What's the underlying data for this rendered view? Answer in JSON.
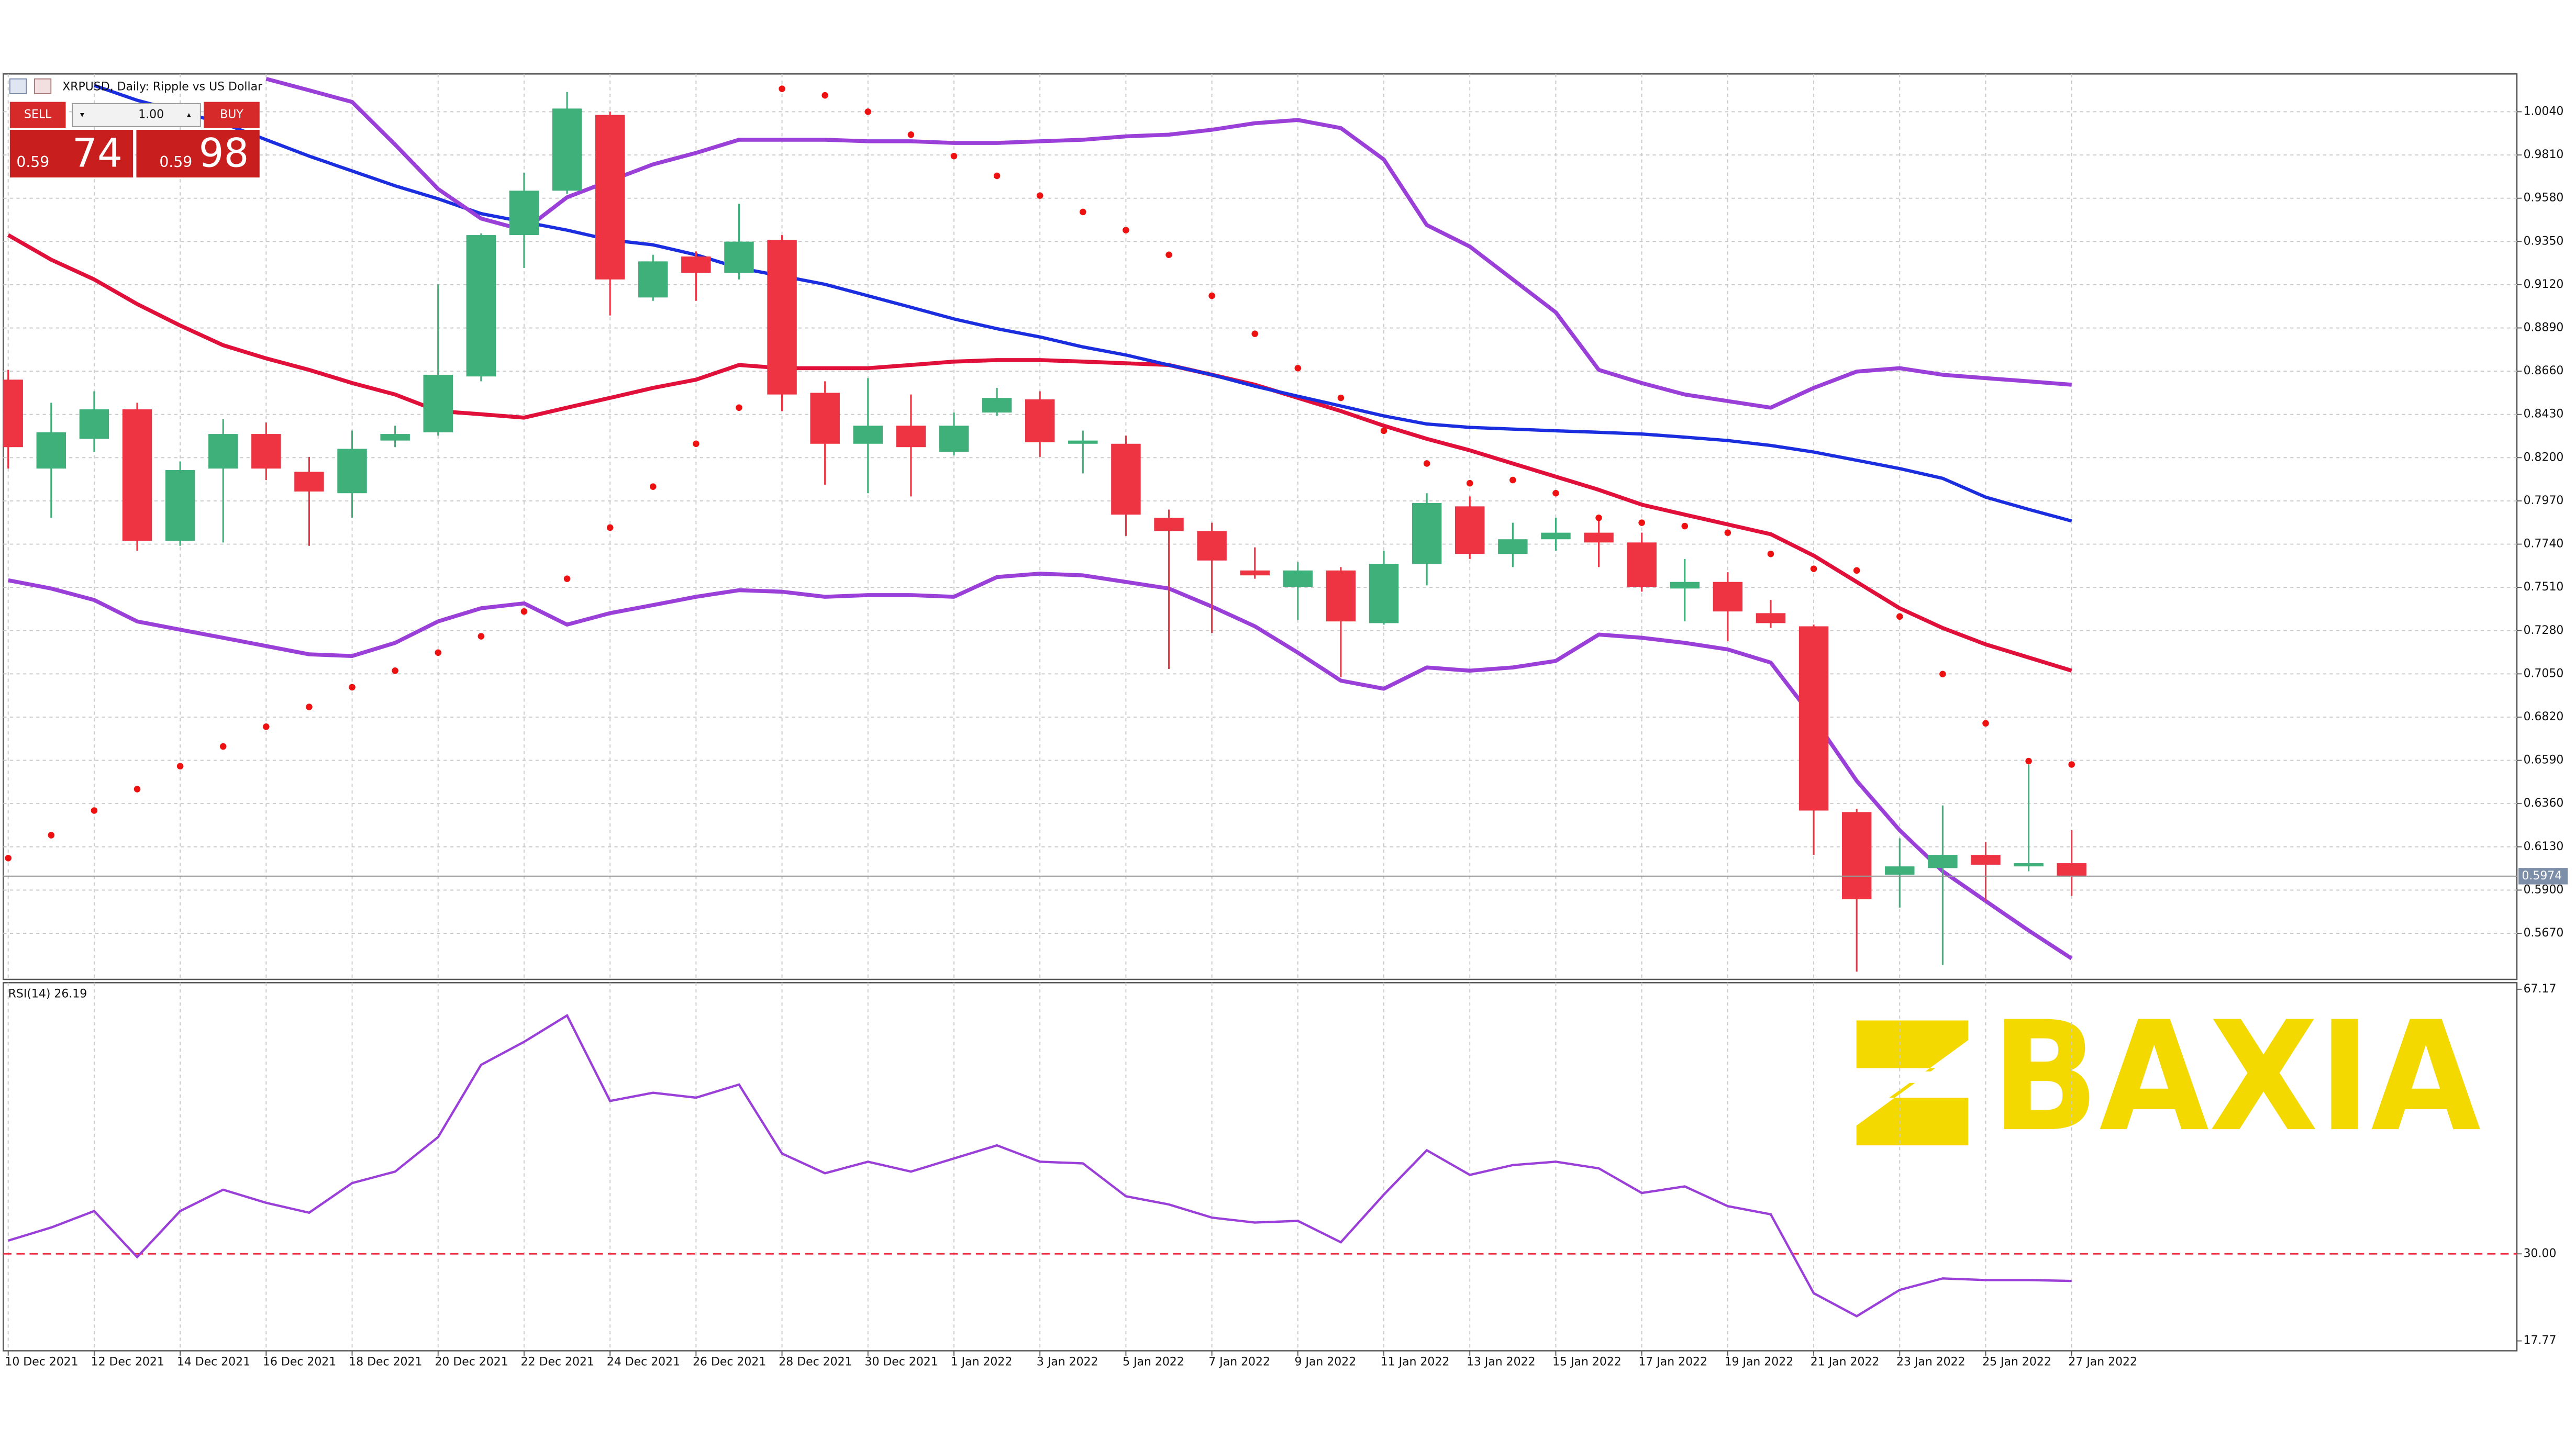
{
  "chart_data": [
    {
      "type": "candlestick",
      "title": "XRPUSD, Daily:  Ripple vs US Dollar",
      "categories": [
        "10 Dec 2021",
        null,
        "12 Dec 2021",
        null,
        "14 Dec 2021",
        null,
        "16 Dec 2021",
        null,
        "18 Dec 2021",
        null,
        "20 Dec 2021",
        null,
        "22 Dec 2021",
        null,
        "24 Dec 2021",
        null,
        "26 Dec 2021",
        null,
        "28 Dec 2021",
        null,
        "30 Dec 2021",
        null,
        "1 Jan 2022",
        null,
        "3 Jan 2022",
        null,
        "5 Jan 2022",
        null,
        "7 Jan 2022",
        null,
        "9 Jan 2022",
        null,
        "11 Jan 2022",
        null,
        "13 Jan 2022",
        null,
        "15 Jan 2022",
        null,
        "17 Jan 2022",
        null,
        "19 Jan 2022",
        null,
        "21 Jan 2022",
        null,
        "23 Jan 2022",
        null,
        "25 Jan 2022",
        null,
        "27 Jan 2022"
      ],
      "open": [
        0.8615,
        0.8142,
        0.83,
        0.8457,
        0.7758,
        0.8142,
        0.8326,
        0.8125,
        0.8011,
        0.8291,
        0.8335,
        0.8632,
        0.9384,
        0.962,
        1.0023,
        0.9052,
        0.927,
        0.9183,
        0.9358,
        0.8545,
        0.8274,
        0.837,
        0.823,
        0.844,
        0.851,
        0.8274,
        0.8274,
        0.788,
        0.781,
        0.76,
        0.7513,
        0.76,
        0.732,
        0.7635,
        0.7941,
        0.7688,
        0.7766,
        0.7801,
        0.7749,
        0.7504,
        0.7539,
        0.7373,
        0.7303,
        0.6315,
        0.5982,
        0.6017,
        0.6087,
        0.6026,
        0.6043
      ],
      "high": [
        0.8667,
        0.8492,
        0.8553,
        0.8492,
        0.818,
        0.8405,
        0.8387,
        0.8204,
        0.8344,
        0.837,
        0.9122,
        0.9393,
        0.9716,
        1.0145,
        1.004,
        0.9279,
        0.9297,
        0.955,
        0.9384,
        0.8606,
        0.8623,
        0.8536,
        0.844,
        0.8571,
        0.8553,
        0.8344,
        0.8317,
        0.7924,
        0.7854,
        0.7723,
        0.7644,
        0.7618,
        0.7705,
        0.8011,
        0.7994,
        0.7854,
        0.788,
        0.788,
        0.7801,
        0.7661,
        0.7591,
        0.7443,
        0.7312,
        0.6332,
        0.6175,
        0.635,
        0.6157,
        0.6568,
        0.6219
      ],
      "low": [
        0.8142,
        0.788,
        0.823,
        0.7705,
        0.7731,
        0.7749,
        0.8081,
        0.7731,
        0.788,
        0.8256,
        0.8317,
        0.8606,
        0.9209,
        0.9603,
        0.8956,
        0.9034,
        0.9034,
        0.9148,
        0.8448,
        0.8055,
        0.8011,
        0.7994,
        0.8212,
        0.8422,
        0.8204,
        0.8116,
        0.7784,
        0.7076,
        0.7268,
        0.7556,
        0.7338,
        0.7032,
        0.7312,
        0.7521,
        0.7661,
        0.7618,
        0.7705,
        0.7618,
        0.7487,
        0.7329,
        0.7224,
        0.7294,
        0.6087,
        0.5466,
        0.5807,
        0.5501,
        0.5842,
        0.6,
        0.5869
      ],
      "close": [
        0.8256,
        0.8335,
        0.8457,
        0.7758,
        0.8134,
        0.8326,
        0.8142,
        0.802,
        0.8247,
        0.8326,
        0.8641,
        0.9384,
        0.962,
        1.0057,
        0.9148,
        0.9244,
        0.9183,
        0.9349,
        0.8536,
        0.8274,
        0.837,
        0.8256,
        0.837,
        0.8518,
        0.8282,
        0.8291,
        0.7897,
        0.781,
        0.7653,
        0.7574,
        0.76,
        0.7329,
        0.7635,
        0.7959,
        0.7688,
        0.7766,
        0.7801,
        0.7749,
        0.7513,
        0.7539,
        0.7382,
        0.732,
        0.6323,
        0.5851,
        0.6026,
        0.6087,
        0.6035,
        0.6043,
        0.5974
      ],
      "up_color": "#3fb07a",
      "down_color": "#ee3443",
      "overlays": [
        {
          "style": "line",
          "color": "#e0103a",
          "width": 2.4,
          "values": [
            0.9384,
            0.9253,
            0.9148,
            0.9017,
            0.8903,
            0.8798,
            0.8728,
            0.8667,
            0.8597,
            0.8536,
            0.8448,
            0.8431,
            0.8413,
            0.8466,
            0.8518,
            0.8571,
            0.8615,
            0.8693,
            0.8676,
            0.8676,
            0.8676,
            0.8693,
            0.8711,
            0.8719,
            0.8719,
            0.8711,
            0.8702,
            0.8693,
            0.8641,
            0.8588,
            0.8518,
            0.8448,
            0.837,
            0.83,
            0.8239,
            0.8169,
            0.8099,
            0.8029,
            0.795,
            0.7897,
            0.7845,
            0.7793,
            0.7679,
            0.7539,
            0.7399,
            0.7294,
            0.7207,
            0.7137,
            0.7067
          ]
        },
        {
          "style": "line",
          "color": "#1a2ee0",
          "width": 2,
          "values": [
            null,
            null,
            1.018,
            1.0101,
            1.004,
            0.9979,
            0.9891,
            0.9804,
            0.9725,
            0.9646,
            0.9577,
            0.9498,
            0.9454,
            0.941,
            0.9358,
            0.9332,
            0.9279,
            0.9209,
            0.9166,
            0.9122,
            0.9061,
            0.9,
            0.8938,
            0.8886,
            0.8842,
            0.8789,
            0.8746,
            0.8693,
            0.8641,
            0.858,
            0.8527,
            0.8475,
            0.8422,
            0.8379,
            0.8361,
            0.8352,
            0.8343,
            0.8335,
            0.8326,
            0.8309,
            0.8291,
            0.8265,
            0.823,
            0.8186,
            0.8142,
            0.809,
            0.799,
            0.7925,
            0.7863
          ]
        },
        {
          "style": "line",
          "color": "#9a3fd8",
          "width": 2.4,
          "values": [
            null,
            null,
            null,
            null,
            null,
            null,
            1.0215,
            1.0154,
            1.0092,
            0.9865,
            0.9629,
            0.9472,
            0.941,
            0.9585,
            0.9673,
            0.976,
            0.9821,
            0.9891,
            0.9891,
            0.9891,
            0.9883,
            0.9883,
            0.9874,
            0.9874,
            0.9883,
            0.9891,
            0.9909,
            0.9918,
            0.9944,
            0.9979,
            0.9996,
            0.9953,
            0.9786,
            0.9437,
            0.9323,
            0.9148,
            0.8973,
            0.8667,
            0.8597,
            0.8536,
            0.8501,
            0.8466,
            0.8571,
            0.8658,
            0.8676,
            0.8641,
            0.8623,
            0.8606,
            0.8588
          ]
        },
        {
          "style": "line",
          "color": "#9a3fd8",
          "width": 2.4,
          "values": [
            0.7548,
            0.7504,
            0.7443,
            0.7329,
            0.7285,
            0.7242,
            0.7198,
            0.7154,
            0.7145,
            0.7215,
            0.7329,
            0.7399,
            0.7425,
            0.7312,
            0.7373,
            0.7416,
            0.746,
            0.7495,
            0.7487,
            0.746,
            0.7469,
            0.7469,
            0.746,
            0.7565,
            0.7583,
            0.7574,
            0.7539,
            0.7504,
            0.7408,
            0.7303,
            0.7163,
            0.7014,
            0.6971,
            0.7084,
            0.7067,
            0.7084,
            0.7119,
            0.7259,
            0.7242,
            0.7215,
            0.718,
            0.711,
            0.6813,
            0.6481,
            0.6218,
            0.6,
            0.5842,
            0.5685,
            0.5536
          ]
        },
        {
          "style": "dots",
          "color": "#ee1111",
          "width": 2,
          "values": [
            0.607,
            0.6192,
            0.6323,
            0.6437,
            0.6559,
            0.6664,
            0.6769,
            0.6874,
            0.6979,
            0.7067,
            0.7163,
            0.725,
            0.7382,
            0.7556,
            0.7828,
            0.8046,
            0.8274,
            0.8466,
            1.0162,
            1.0127,
            1.004,
            0.9918,
            0.9804,
            0.9699,
            0.9594,
            0.9507,
            0.941,
            0.9279,
            0.9061,
            0.8859,
            0.8676,
            0.8518,
            0.8343,
            0.8169,
            0.8064,
            0.8081,
            0.8011,
            0.788,
            0.7854,
            0.7836,
            0.7801,
            0.7688,
            0.7609,
            0.76,
            0.7355,
            0.7049,
            0.6787,
            0.6586,
            0.6568
          ]
        }
      ],
      "last_price": 0.5974,
      "ylim": [
        0.5425,
        1.0241
      ],
      "yticks": [
        {
          "value": 1.004,
          "label": "1.0040"
        },
        {
          "value": 0.981,
          "label": "0.9810"
        },
        {
          "value": 0.958,
          "label": "0.9580"
        },
        {
          "value": 0.935,
          "label": "0.9350"
        },
        {
          "value": 0.912,
          "label": "0.9120"
        },
        {
          "value": 0.889,
          "label": "0.8890"
        },
        {
          "value": 0.866,
          "label": "0.8660"
        },
        {
          "value": 0.843,
          "label": "0.8430"
        },
        {
          "value": 0.82,
          "label": "0.8200"
        },
        {
          "value": 0.797,
          "label": "0.7970"
        },
        {
          "value": 0.774,
          "label": "0.7740"
        },
        {
          "value": 0.751,
          "label": "0.7510"
        },
        {
          "value": 0.728,
          "label": "0.7280"
        },
        {
          "value": 0.705,
          "label": "0.7050"
        },
        {
          "value": 0.682,
          "label": "0.6820"
        },
        {
          "value": 0.659,
          "label": "0.6590"
        },
        {
          "value": 0.636,
          "label": "0.6360"
        },
        {
          "value": 0.613,
          "label": "0.6130"
        },
        {
          "value": 0.59,
          "label": "0.5900"
        },
        {
          "value": 0.567,
          "label": "0.5670"
        }
      ],
      "grid": true
    },
    {
      "type": "line",
      "label": "RSI(14) 26.19",
      "color": "#9a3fd8",
      "values": [
        31.86,
        33.7,
        36.01,
        29.55,
        36.01,
        39.01,
        37.17,
        35.78,
        39.94,
        41.55,
        46.4,
        56.55,
        59.78,
        63.48,
        51.48,
        52.63,
        51.94,
        53.78,
        44.09,
        41.32,
        42.94,
        41.55,
        43.4,
        45.24,
        42.94,
        42.71,
        38.09,
        36.94,
        35.09,
        34.4,
        34.63,
        31.63,
        38.32,
        44.55,
        41.09,
        42.47,
        42.94,
        42.01,
        38.55,
        39.47,
        36.7,
        35.55,
        24.47,
        21.24,
        24.93,
        26.55,
        26.32,
        26.32,
        26.19
      ],
      "ylim": [
        17.77,
        67.17
      ],
      "yticks": [
        67.17,
        {
          "value": 30,
          "label": "30.00"
        },
        17.77
      ],
      "levels": [
        30
      ],
      "level_color": "#ee3443"
    }
  ],
  "trade_panel": {
    "sell": "SELL",
    "lots": "1.00",
    "buy": "BUY",
    "bid_prefix": "0.59",
    "bid_big": "74",
    "ask_prefix": "0.59",
    "ask_big": "98"
  },
  "watermark": "BAXIA"
}
